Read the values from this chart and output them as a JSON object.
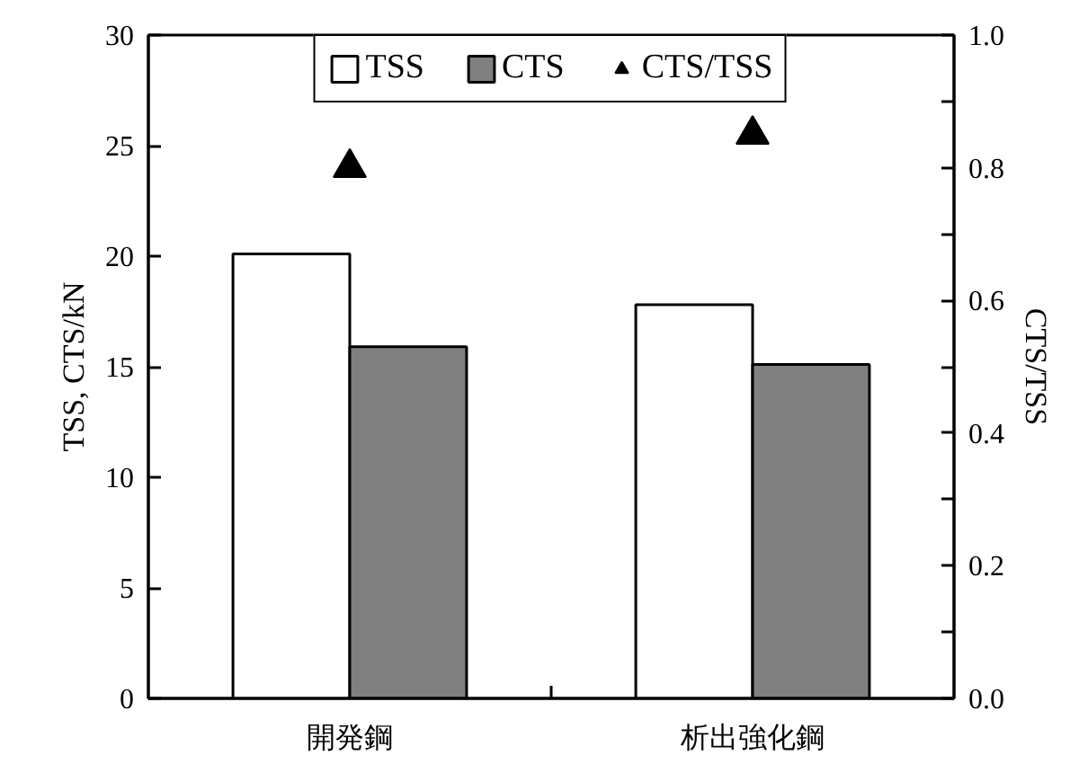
{
  "chart_data": {
    "type": "bar",
    "categories": [
      "開発鋼",
      "析出強化鋼"
    ],
    "ylabel": "TSS, CTS/kN",
    "y2label": "CTS/TSS",
    "ylim": [
      0,
      30
    ],
    "yticks": [
      0,
      5,
      10,
      15,
      20,
      25,
      30
    ],
    "y2lim": [
      0,
      1
    ],
    "y2ticks": [
      {
        "value": 0,
        "label": "0.0"
      },
      {
        "value": 0.1,
        "label": null
      },
      0.2,
      {
        "value": 0.3,
        "label": null
      },
      0.4,
      {
        "value": 0.5,
        "label": null
      },
      0.6,
      {
        "value": 0.7,
        "label": null
      },
      0.8,
      {
        "value": 0.9,
        "label": null
      },
      {
        "value": 1,
        "label": "1.0"
      }
    ],
    "series": [
      {
        "name": "TSS",
        "color": "#ffffff",
        "values": [
          20.1,
          17.8
        ]
      },
      {
        "name": "CTS",
        "color": "#808080",
        "values": [
          15.9,
          15.1
        ]
      },
      {
        "name": "CTS/TSS",
        "type": "scatter",
        "axis": "y2",
        "marker": "triangle",
        "color": "#000000",
        "values": [
          0.8,
          0.85
        ]
      }
    ],
    "legend": "top",
    "grid": false
  }
}
